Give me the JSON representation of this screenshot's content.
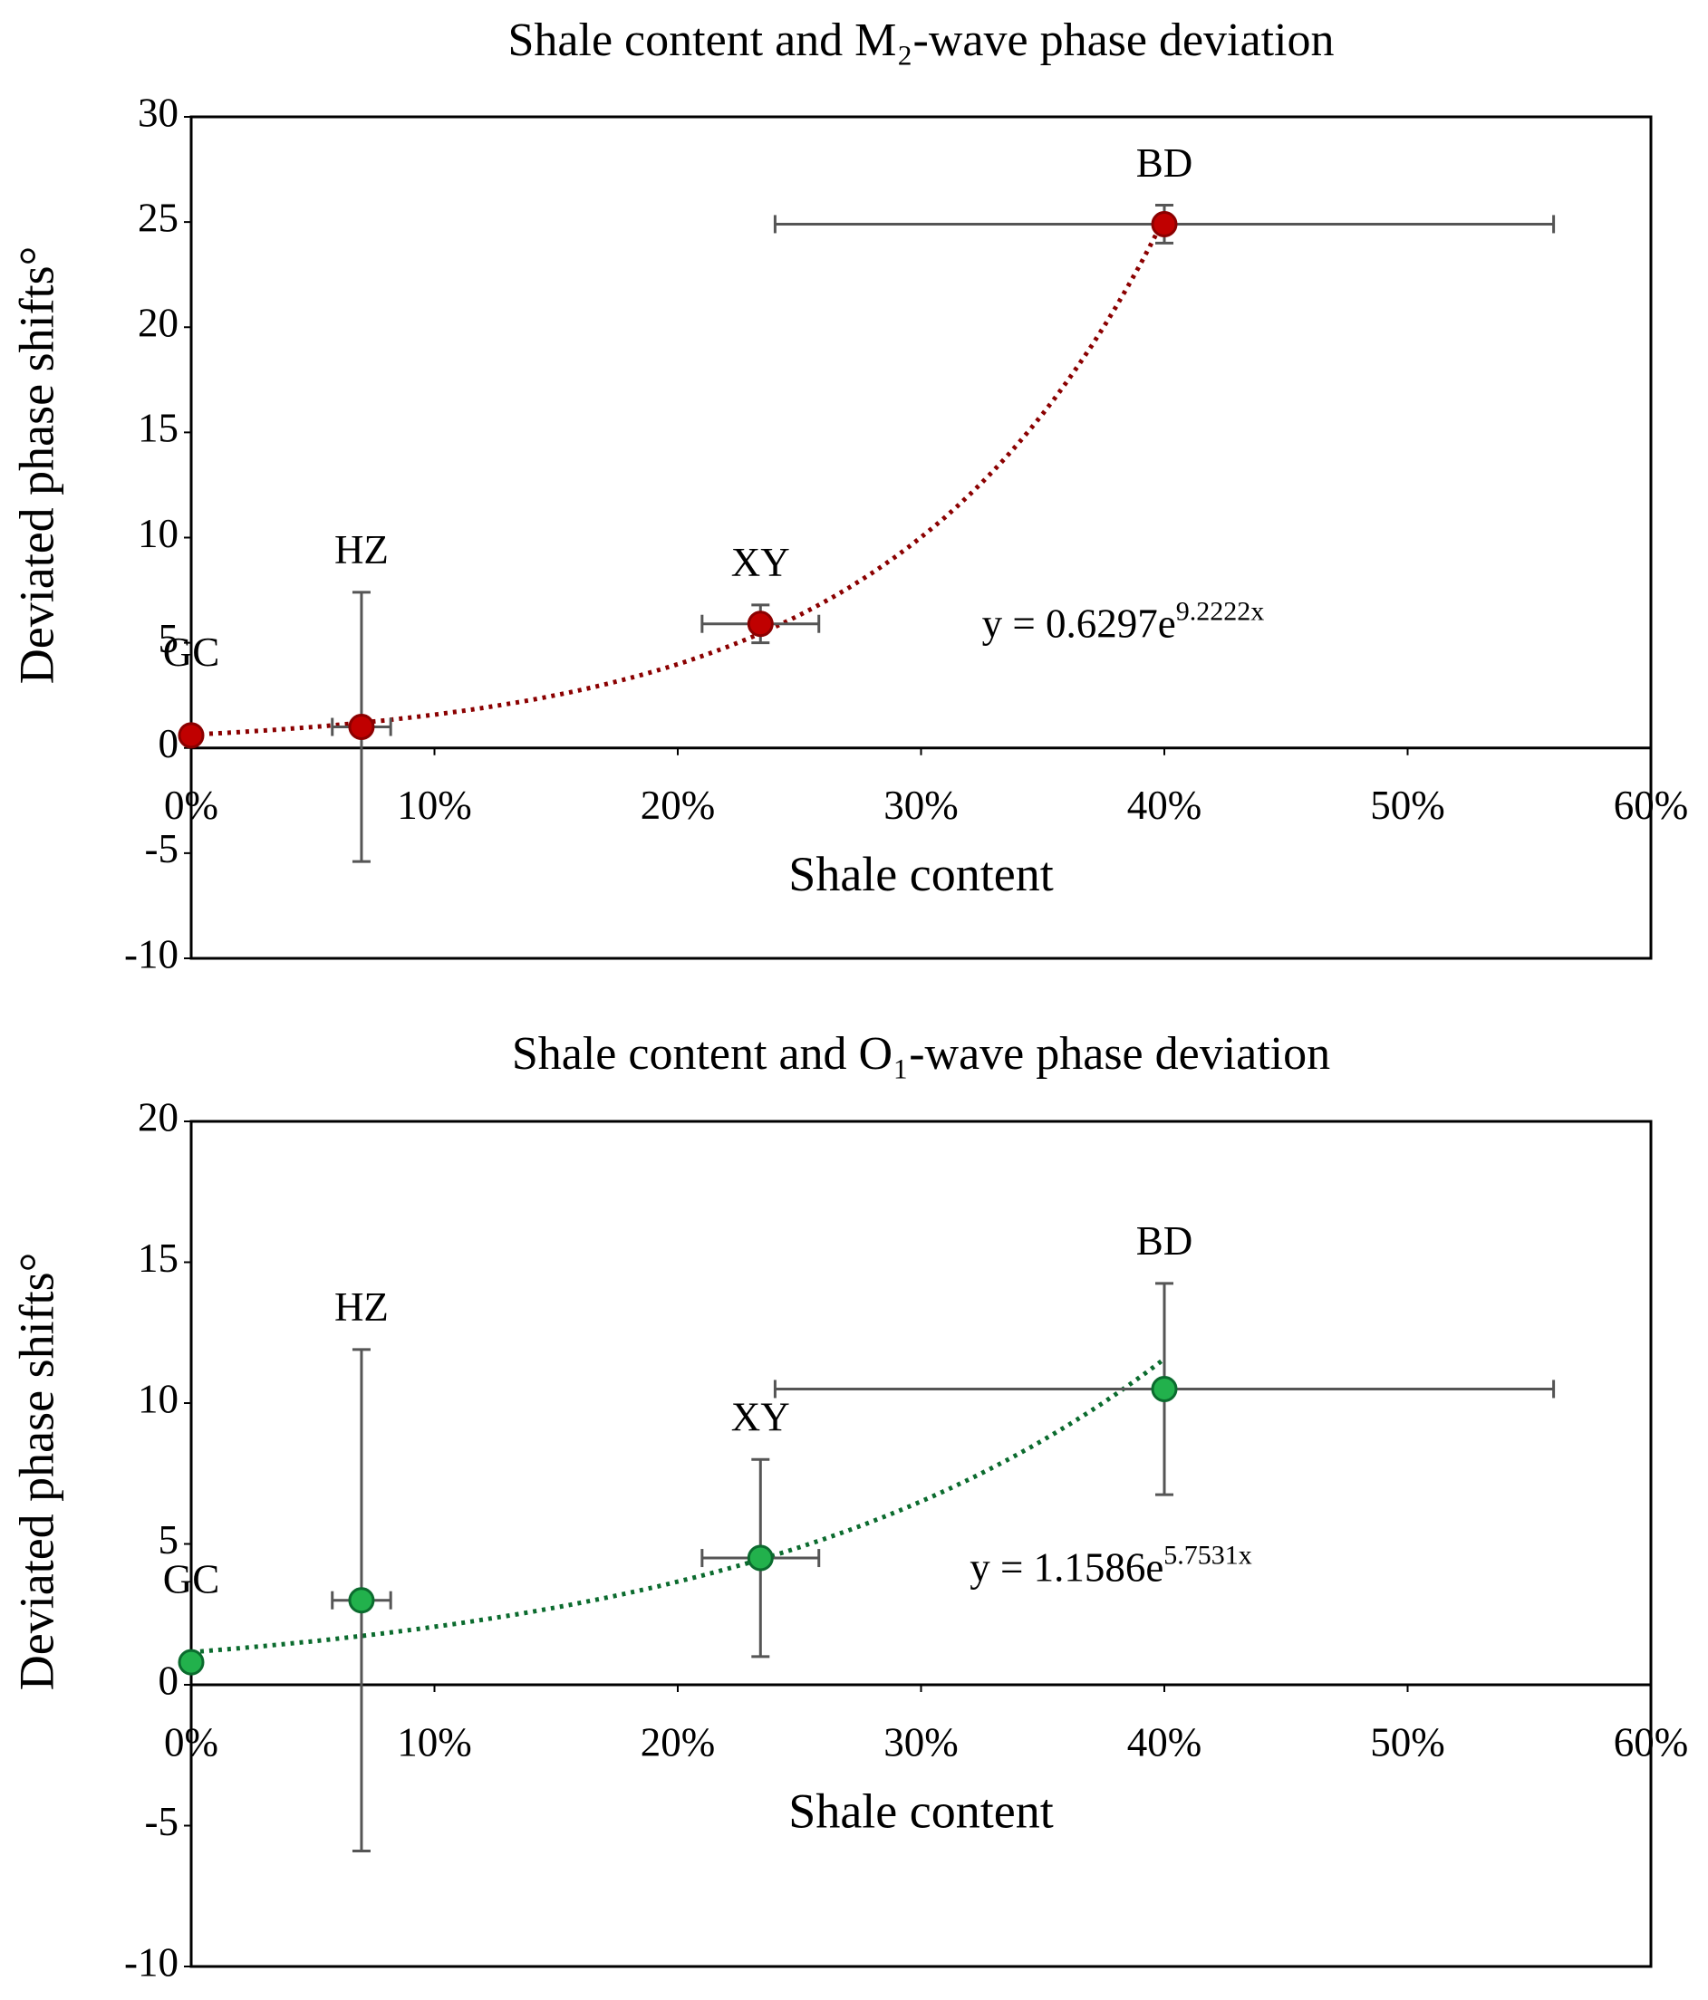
{
  "chart_data": [
    {
      "type": "scatter",
      "title": "Shale content and M₂-wave phase deviation",
      "xlabel": "Shale content",
      "ylabel": "Deviated phase shifts°",
      "point_labels": [
        "GC",
        "HZ",
        "XY",
        "BD"
      ],
      "x": [
        0,
        0.07,
        0.234,
        0.4
      ],
      "values": [
        0.6,
        1.0,
        5.9,
        24.9
      ],
      "xerr": [
        null,
        0.012,
        0.024,
        0.16
      ],
      "yerr": [
        null,
        6.4,
        0.9,
        0.9
      ],
      "color": "#c00000",
      "edge_color": "#8b0000",
      "title_color": "#a31515",
      "trendline": {
        "a": 0.6297,
        "b": 9.2222
      },
      "equation": "y = 0.6297e",
      "equation_exp": "9.2222x",
      "xlim": [
        0,
        0.6
      ],
      "xticks": [
        {
          "value": 0,
          "label": "0%"
        },
        {
          "value": 0.1,
          "label": "10%"
        },
        {
          "value": 0.2,
          "label": "20%"
        },
        {
          "value": 0.3,
          "label": "30%"
        },
        {
          "value": 0.4,
          "label": "40%"
        },
        {
          "value": 0.5,
          "label": "50%"
        },
        {
          "value": 0.6,
          "label": "60%"
        }
      ],
      "ylim": [
        -10,
        30
      ],
      "yticks": [
        -10,
        -5,
        0,
        5,
        10,
        15,
        20,
        25,
        30
      ],
      "grid": false
    },
    {
      "type": "scatter",
      "title": "Shale content and O₁-wave phase deviation",
      "xlabel": "Shale content",
      "ylabel": "Deviated phase shifts°",
      "point_labels": [
        "GC",
        "HZ",
        "XY",
        "BD"
      ],
      "x": [
        0,
        0.07,
        0.234,
        0.4
      ],
      "values": [
        0.8,
        3.0,
        4.5,
        10.5
      ],
      "xerr": [
        null,
        0.012,
        0.024,
        0.16
      ],
      "yerr": [
        null,
        8.9,
        3.5,
        3.75
      ],
      "color": "#22b14c",
      "edge_color": "#0b6b2e",
      "title_color": "#00a050",
      "trendline": {
        "a": 1.1586,
        "b": 5.7531
      },
      "equation": "y = 1.1586e",
      "equation_exp": "5.7531x",
      "xlim": [
        0,
        0.6
      ],
      "xticks": [
        {
          "value": 0,
          "label": "0%"
        },
        {
          "value": 0.1,
          "label": "10%"
        },
        {
          "value": 0.2,
          "label": "20%"
        },
        {
          "value": 0.3,
          "label": "30%"
        },
        {
          "value": 0.4,
          "label": "40%"
        },
        {
          "value": 0.5,
          "label": "50%"
        },
        {
          "value": 0.6,
          "label": "60%"
        }
      ],
      "ylim": [
        -10,
        20
      ],
      "yticks": [
        -10,
        -5,
        0,
        5,
        10,
        15,
        20
      ],
      "grid": false
    }
  ]
}
